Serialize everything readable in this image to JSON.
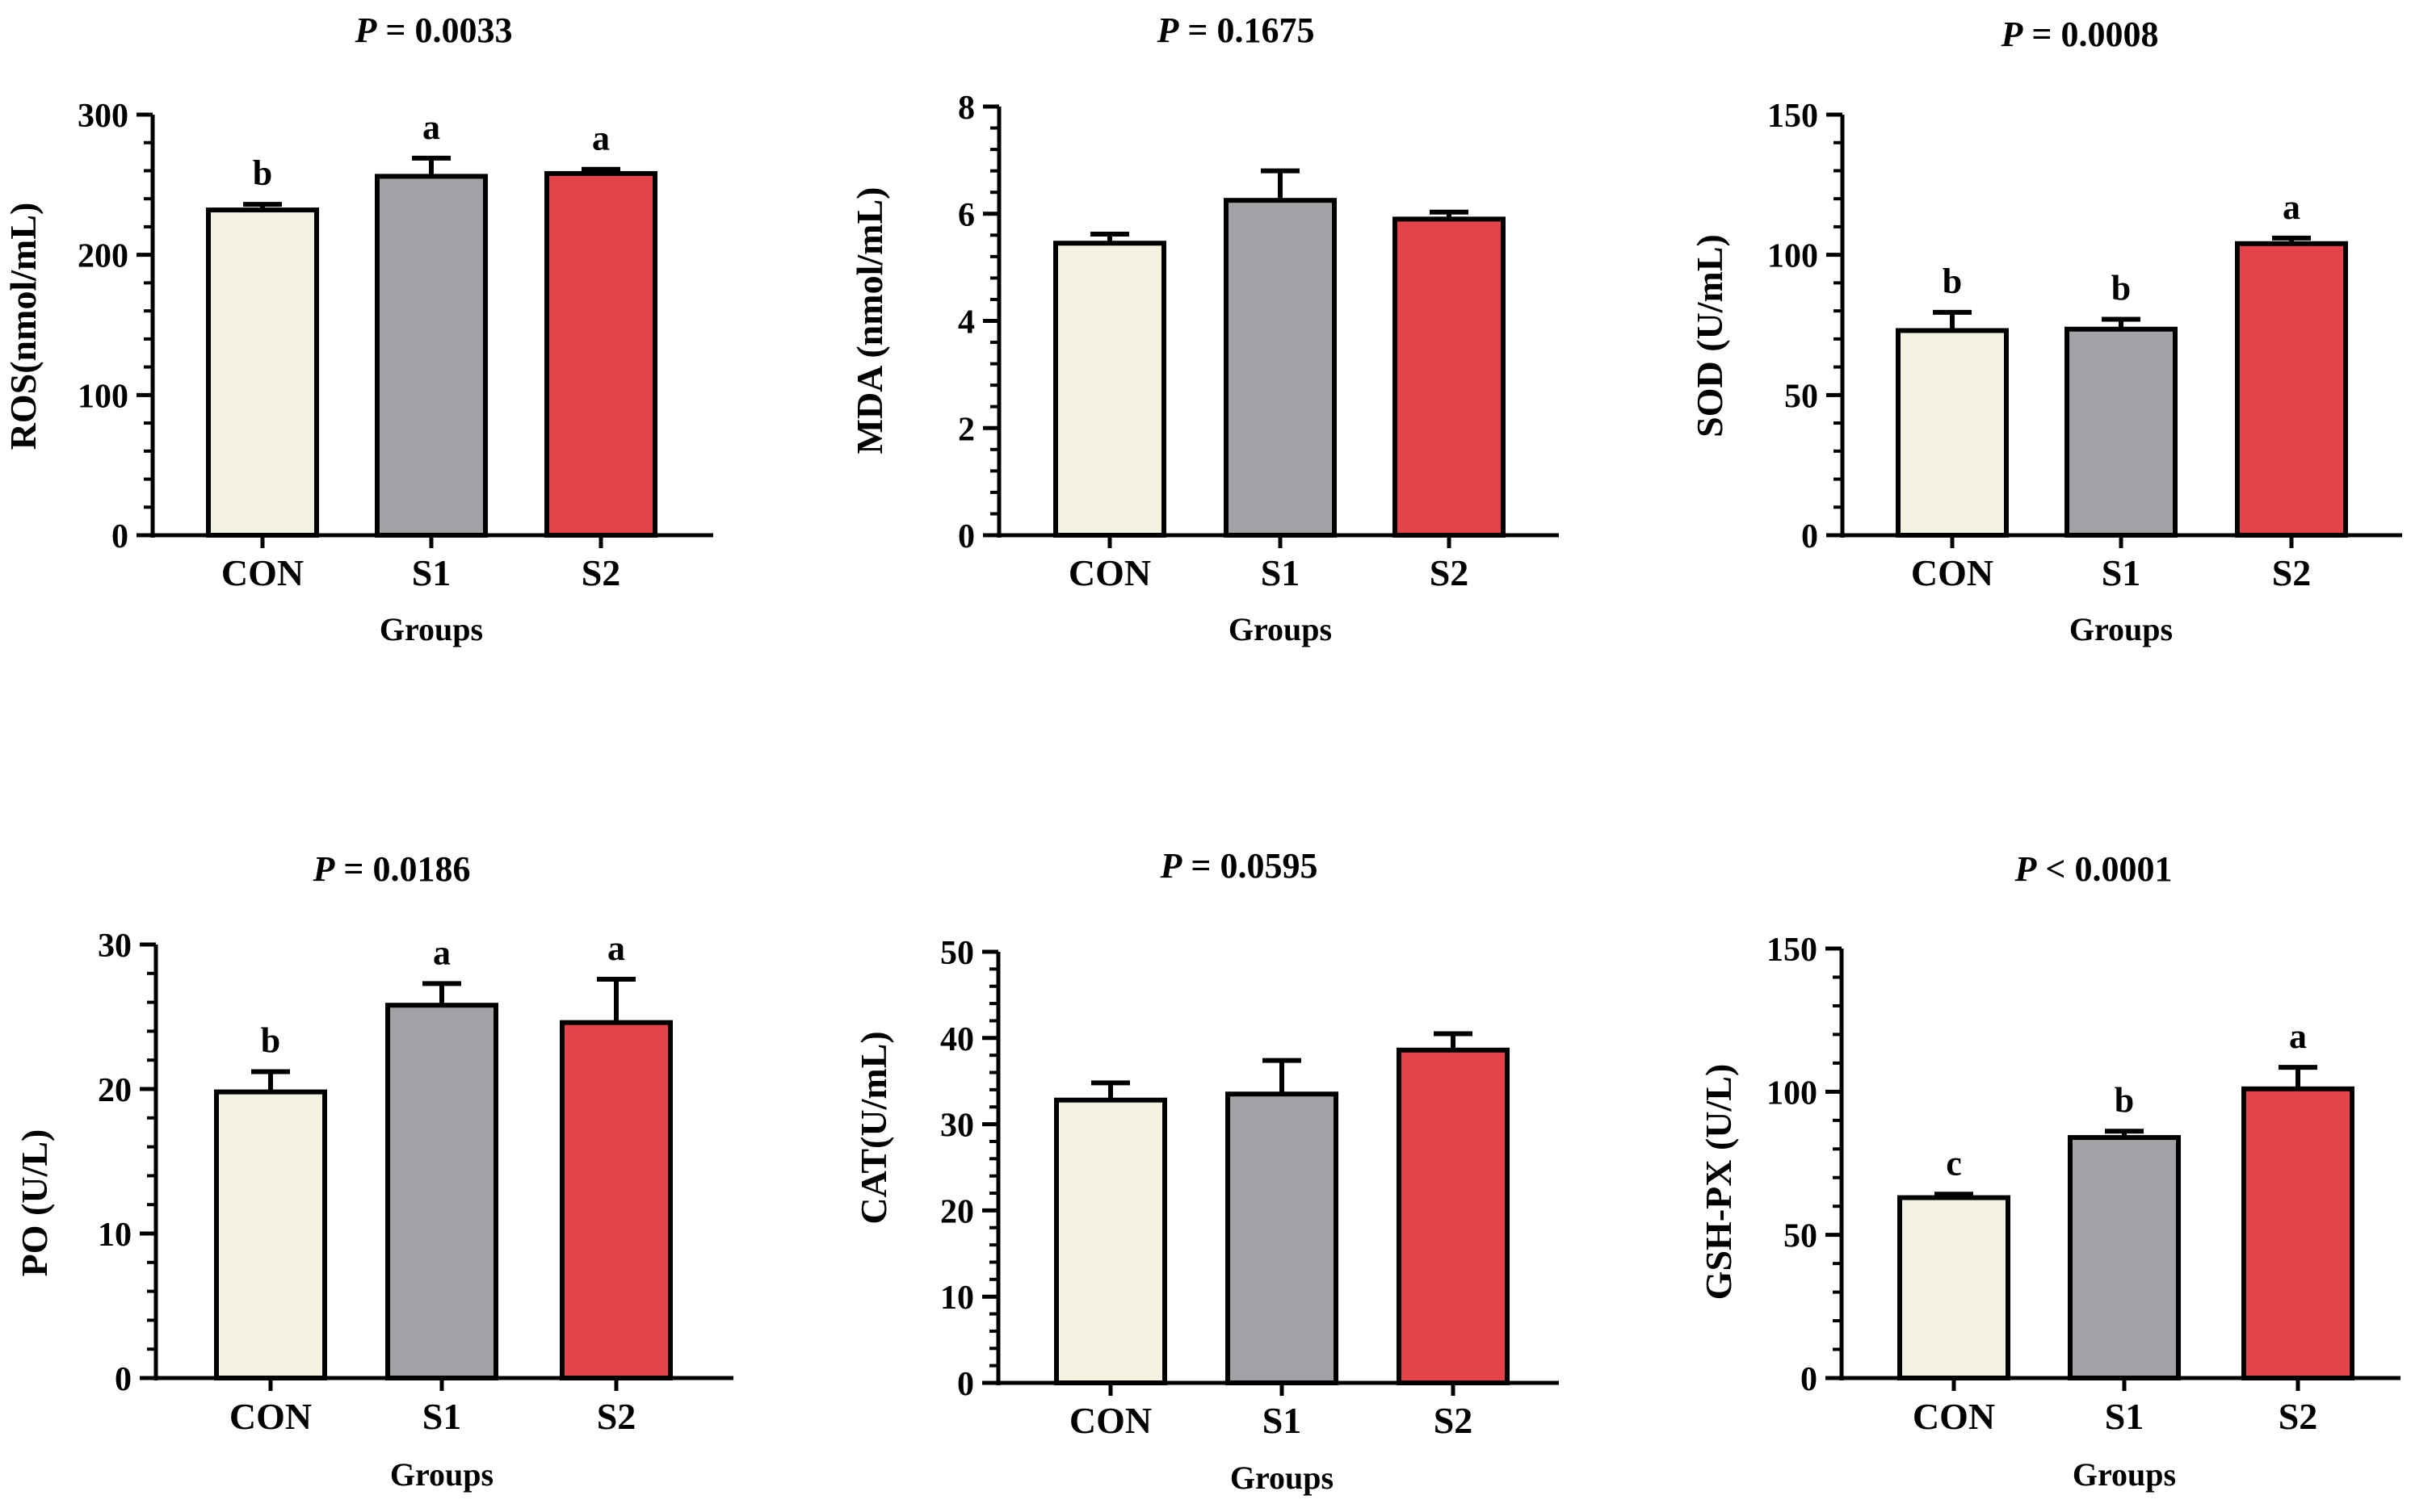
{
  "figure": {
    "groups_label": "Groups",
    "bar_colors": [
      "#f3f1df",
      "#a1a1a6",
      "#e5434a"
    ],
    "axis_color": "#000000"
  },
  "chart_data": [
    {
      "type": "bar",
      "p_label": "P",
      "p_rest": " = 0.0033",
      "ylabel": "ROS(nmol/mL)",
      "xlabel": "Groups",
      "categories": [
        "CON",
        "S1",
        "S2"
      ],
      "values": [
        232,
        256,
        258
      ],
      "errors": [
        4,
        13,
        3
      ],
      "letters": [
        "b",
        "a",
        "a"
      ],
      "ylim": [
        0,
        300
      ],
      "yticks": [
        0,
        100,
        200,
        300
      ]
    },
    {
      "type": "bar",
      "p_label": "P",
      "p_rest": " = 0.1675",
      "ylabel": "MDA (nmol/mL)",
      "xlabel": "Groups",
      "categories": [
        "CON",
        "S1",
        "S2"
      ],
      "values": [
        5.45,
        6.25,
        5.9
      ],
      "errors": [
        0.17,
        0.55,
        0.13
      ],
      "letters": [
        "",
        "",
        ""
      ],
      "ylim": [
        0,
        8
      ],
      "yticks": [
        0,
        2,
        4,
        6,
        8
      ]
    },
    {
      "type": "bar",
      "p_label": "P",
      "p_rest": " = 0.0008",
      "ylabel": "SOD (U/mL)",
      "xlabel": "Groups",
      "categories": [
        "CON",
        "S1",
        "S2"
      ],
      "values": [
        73,
        73.5,
        104
      ],
      "errors": [
        6.5,
        3.5,
        2
      ],
      "letters": [
        "b",
        "b",
        "a"
      ],
      "ylim": [
        0,
        150
      ],
      "yticks": [
        0,
        50,
        100,
        150
      ]
    },
    {
      "type": "bar",
      "p_label": "P",
      "p_rest": " = 0.0186",
      "ylabel": "PO (U/L)",
      "xlabel": "Groups",
      "categories": [
        "CON",
        "S1",
        "S2"
      ],
      "values": [
        19.8,
        25.8,
        24.6
      ],
      "errors": [
        1.4,
        1.5,
        3
      ],
      "letters": [
        "b",
        "a",
        "a"
      ],
      "ylim": [
        0,
        30
      ],
      "yticks": [
        0,
        10,
        20,
        30
      ]
    },
    {
      "type": "bar",
      "p_label": "P",
      "p_rest": " = 0.0595",
      "ylabel": "CAT(U/mL)",
      "xlabel": "Groups",
      "categories": [
        "CON",
        "S1",
        "S2"
      ],
      "values": [
        32.8,
        33.5,
        38.6
      ],
      "errors": [
        2,
        3.9,
        1.9
      ],
      "letters": [
        "",
        "",
        ""
      ],
      "ylim": [
        0,
        50
      ],
      "yticks": [
        0,
        10,
        20,
        30,
        40,
        50
      ]
    },
    {
      "type": "bar",
      "p_label": "P",
      "p_rest": " < 0.0001",
      "ylabel": "GSH-PX (U/L)",
      "xlabel": "Groups",
      "categories": [
        "CON",
        "S1",
        "S2"
      ],
      "values": [
        63,
        84,
        101
      ],
      "errors": [
        1.2,
        2.2,
        7.5
      ],
      "letters": [
        "c",
        "b",
        "a"
      ],
      "ylim": [
        0,
        150
      ],
      "yticks": [
        0,
        50,
        100,
        150
      ]
    }
  ]
}
